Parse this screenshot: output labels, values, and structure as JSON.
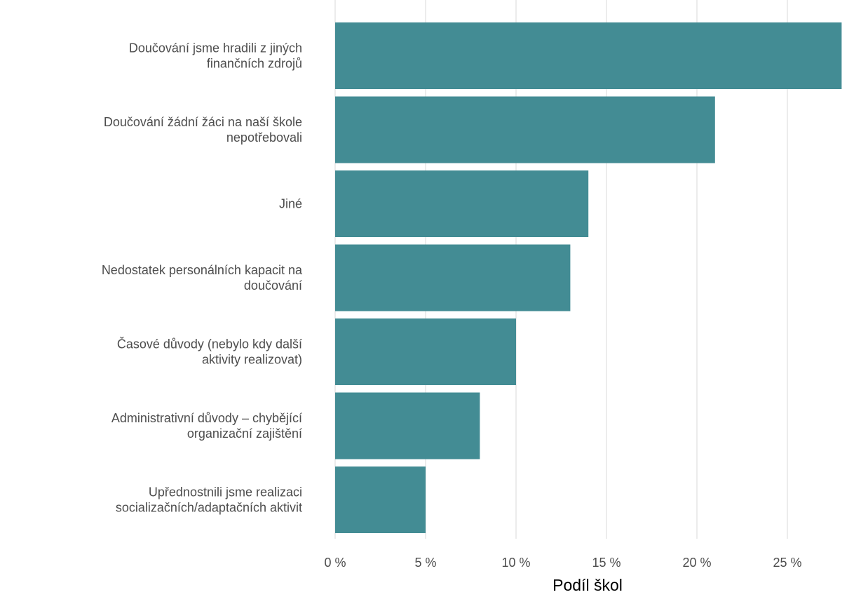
{
  "chart_data": {
    "type": "bar",
    "orientation": "horizontal",
    "title": "",
    "xlabel": "Podíl škol",
    "ylabel": "",
    "xlim": [
      0,
      0.28
    ],
    "x_ticks": [
      0,
      0.05,
      0.1,
      0.15,
      0.2,
      0.25
    ],
    "x_tick_labels": [
      "0 %",
      "5 %",
      "10 %",
      "15 %",
      "20 %",
      "25 %"
    ],
    "grid": true,
    "bar_color": "#438C94",
    "categories": [
      [
        "Doučování jsme hradili z jiných",
        "finančních zdrojů"
      ],
      [
        "Doučování žádní žáci na naší škole",
        "nepotřebovali"
      ],
      [
        "Jiné"
      ],
      [
        "Nedostatek personálních kapacit na",
        "doučování"
      ],
      [
        "Časové důvody (nebylo kdy další",
        "aktivity realizovat)"
      ],
      [
        "Administrativní důvody – chybějící",
        "organizační zajištění"
      ],
      [
        "Upřednostnili jsme realizaci",
        "socializačních/adaptačních aktivit"
      ]
    ],
    "values": [
      0.28,
      0.21,
      0.14,
      0.13,
      0.1,
      0.08,
      0.05
    ]
  }
}
